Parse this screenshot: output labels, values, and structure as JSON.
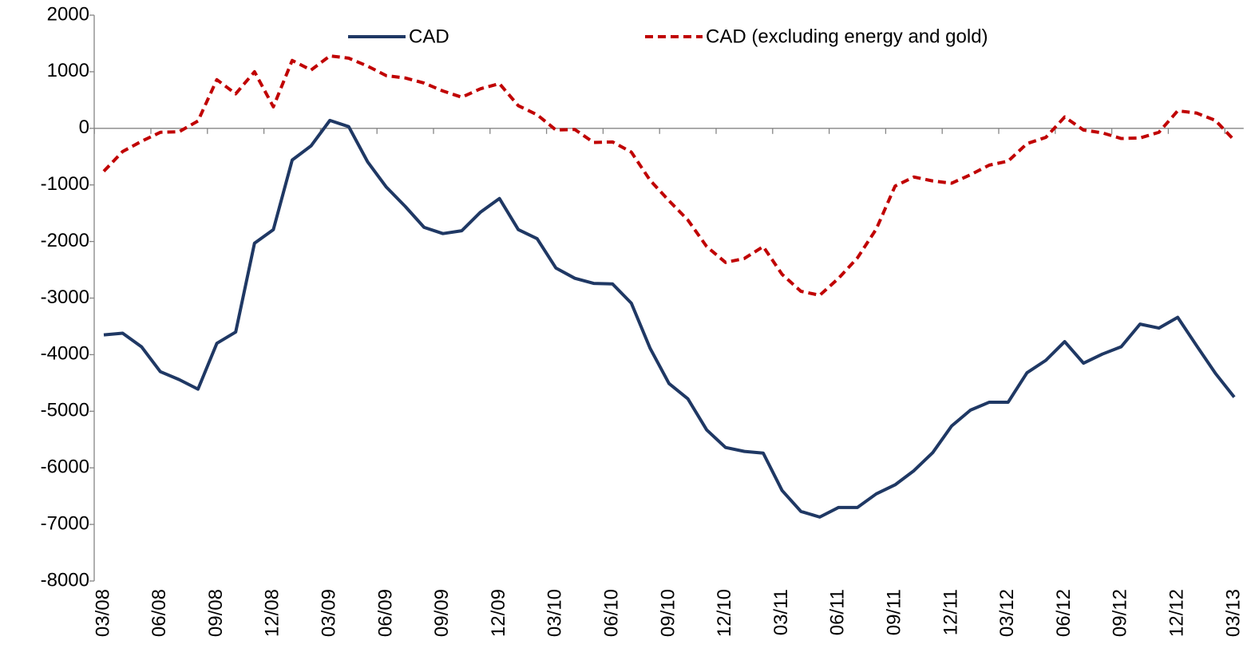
{
  "chart_data": {
    "type": "line",
    "categories": [
      "03/08",
      null,
      null,
      "06/08",
      null,
      null,
      "09/08",
      null,
      null,
      "12/08",
      null,
      null,
      "03/09",
      null,
      null,
      "06/09",
      null,
      null,
      "09/09",
      null,
      null,
      "12/09",
      null,
      null,
      "03/10",
      null,
      null,
      "06/10",
      null,
      null,
      "09/10",
      null,
      null,
      "12/10",
      null,
      null,
      "03/11",
      null,
      null,
      "06/11",
      null,
      null,
      "09/11",
      null,
      null,
      "12/11",
      null,
      null,
      "03/12",
      null,
      null,
      "06/12",
      null,
      null,
      "09/12",
      null,
      null,
      "12/12",
      null,
      null,
      "03/13"
    ],
    "series": [
      {
        "name": "CAD",
        "color": "#1f3864",
        "dash": false,
        "values": [
          -3650,
          -3620,
          -3860,
          -4300,
          -4440,
          -4610,
          -3800,
          -3600,
          -2030,
          -1790,
          -560,
          -310,
          140,
          30,
          -590,
          -1040,
          -1380,
          -1750,
          -1860,
          -1810,
          -1480,
          -1240,
          -1790,
          -1950,
          -2470,
          -2650,
          -2740,
          -2750,
          -3090,
          -3890,
          -4510,
          -4780,
          -5330,
          -5640,
          -5710,
          -5740,
          -6400,
          -6770,
          -6870,
          -6700,
          -6700,
          -6460,
          -6300,
          -6050,
          -5730,
          -5260,
          -4980,
          -4840,
          -4840,
          -4320,
          -4100,
          -3770,
          -4150,
          -3990,
          -3860,
          -3460,
          -3530,
          -3340,
          -3840,
          -4330,
          -4750
        ]
      },
      {
        "name": "CAD (excluding energy and gold)",
        "color": "#c00000",
        "dash": true,
        "values": [
          -760,
          -410,
          -230,
          -70,
          -60,
          130,
          860,
          610,
          1000,
          380,
          1200,
          1030,
          1280,
          1240,
          1100,
          930,
          890,
          800,
          660,
          550,
          700,
          790,
          400,
          240,
          -30,
          -20,
          -250,
          -240,
          -420,
          -920,
          -1280,
          -1620,
          -2090,
          -2370,
          -2300,
          -2090,
          -2580,
          -2880,
          -2950,
          -2650,
          -2290,
          -1780,
          -1020,
          -860,
          -930,
          -970,
          -820,
          -650,
          -580,
          -270,
          -160,
          200,
          -30,
          -80,
          -180,
          -170,
          -70,
          310,
          270,
          140,
          -210
        ]
      }
    ],
    "ylim": [
      -8000,
      2000
    ],
    "yticks": [
      -8000,
      -7000,
      -6000,
      -5000,
      -4000,
      -3000,
      -2000,
      -1000,
      0,
      1000,
      2000
    ],
    "legend": "top"
  }
}
